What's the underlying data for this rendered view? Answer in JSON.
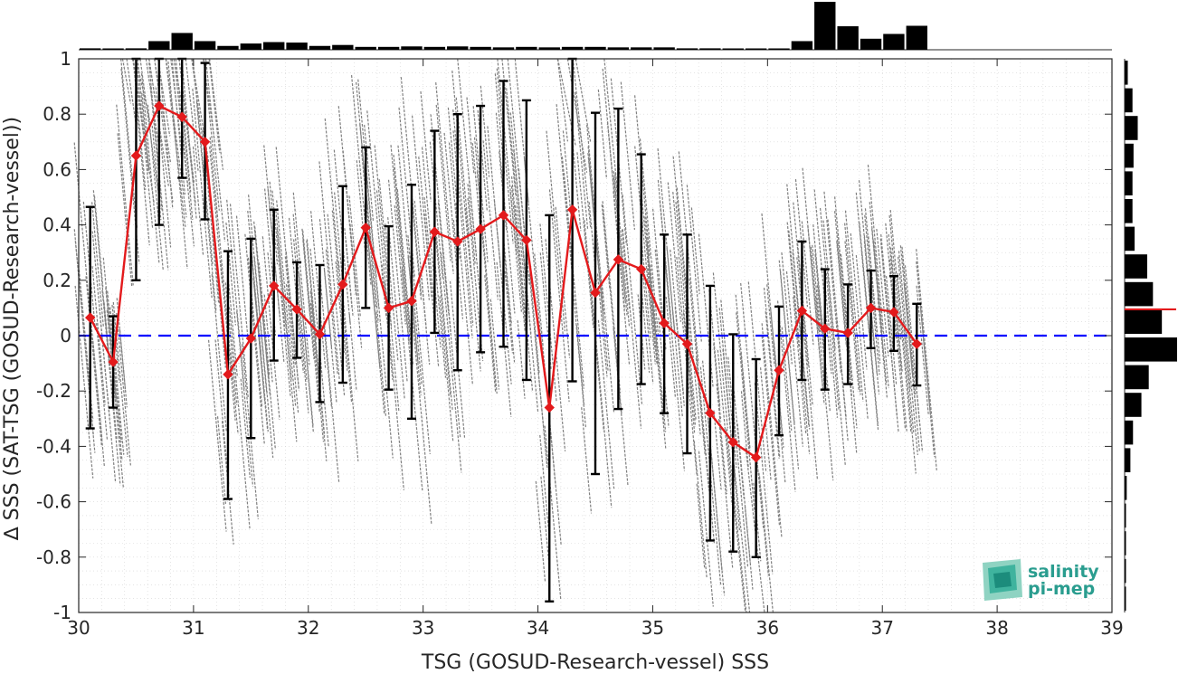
{
  "chart_data": {
    "type": "scatter",
    "xlabel": "TSG (GOSUD-Research-vessel) SSS",
    "ylabel": "∆ SSS (SAT-TSG (GOSUD-Research-vessel))",
    "xlim": [
      30,
      39
    ],
    "ylim": [
      -1,
      1
    ],
    "x_ticks": [
      "30",
      "31",
      "32",
      "33",
      "34",
      "35",
      "36",
      "37",
      "38",
      "39"
    ],
    "y_ticks": [
      "-1",
      "-0.8",
      "-0.6",
      "-0.4",
      "-0.2",
      "0",
      "0.2",
      "0.4",
      "0.6",
      "0.8",
      "1"
    ],
    "grid": "dotted-minor",
    "zero_line": {
      "y": 0,
      "color": "#0000ff",
      "style": "dashed"
    },
    "binned_mean": {
      "color": "#e31a1c",
      "x": [
        30.1,
        30.3,
        30.5,
        30.7,
        30.9,
        31.1,
        31.3,
        31.5,
        31.7,
        31.9,
        32.1,
        32.3,
        32.5,
        32.7,
        32.9,
        33.1,
        33.3,
        33.5,
        33.7,
        33.9,
        34.1,
        34.3,
        34.5,
        34.7,
        34.9,
        35.1,
        35.3,
        35.5,
        35.7,
        35.9,
        36.1,
        36.3,
        36.5,
        36.7,
        36.9,
        37.1,
        37.3
      ],
      "y": [
        0.065,
        -0.095,
        0.65,
        0.83,
        0.79,
        0.7,
        -0.14,
        -0.01,
        0.18,
        0.095,
        0.005,
        0.185,
        0.39,
        0.1,
        0.125,
        0.375,
        0.34,
        0.385,
        0.435,
        0.345,
        -0.26,
        0.455,
        0.155,
        0.275,
        0.24,
        0.045,
        -0.03,
        -0.28,
        -0.385,
        -0.44,
        -0.125,
        0.09,
        0.025,
        0.01,
        0.1,
        0.085,
        -0.03
      ],
      "lower": [
        -0.335,
        -0.26,
        0.2,
        0.4,
        0.57,
        0.42,
        -0.59,
        -0.37,
        -0.09,
        -0.08,
        -0.24,
        -0.17,
        0.1,
        -0.195,
        -0.3,
        0.01,
        -0.125,
        -0.06,
        -0.04,
        -0.16,
        -0.96,
        -0.165,
        -0.5,
        -0.265,
        -0.175,
        -0.28,
        -0.425,
        -0.74,
        -0.78,
        -0.8,
        -0.36,
        -0.16,
        -0.195,
        -0.175,
        -0.045,
        -0.055,
        -0.18
      ],
      "upper": [
        0.465,
        0.07,
        1.0,
        1.0,
        1.0,
        0.985,
        0.305,
        0.35,
        0.455,
        0.265,
        0.255,
        0.54,
        0.68,
        0.395,
        0.545,
        0.74,
        0.8,
        0.83,
        0.92,
        0.85,
        0.435,
        1.0,
        0.805,
        0.82,
        0.655,
        0.365,
        0.365,
        0.18,
        0.005,
        -0.085,
        0.105,
        0.34,
        0.24,
        0.185,
        0.235,
        0.215,
        0.115
      ]
    },
    "scatter_color": "#808080",
    "top_histogram": {
      "bin_centers": [
        30.1,
        30.3,
        30.5,
        30.7,
        30.9,
        31.1,
        31.3,
        31.5,
        31.7,
        31.9,
        32.1,
        32.3,
        32.5,
        32.7,
        32.9,
        33.1,
        33.3,
        33.5,
        33.7,
        33.9,
        34.1,
        34.3,
        34.5,
        34.7,
        34.9,
        35.1,
        35.3,
        35.5,
        35.7,
        35.9,
        36.1,
        36.3,
        36.5,
        36.7,
        36.9,
        37.1,
        37.3
      ],
      "relative_counts": [
        0.03,
        0.01,
        0.03,
        0.18,
        0.35,
        0.18,
        0.08,
        0.13,
        0.16,
        0.15,
        0.08,
        0.1,
        0.06,
        0.06,
        0.07,
        0.06,
        0.07,
        0.06,
        0.05,
        0.06,
        0.05,
        0.06,
        0.06,
        0.05,
        0.05,
        0.05,
        0.03,
        0.03,
        0.01,
        0.01,
        0.01,
        0.18,
        1.0,
        0.49,
        0.23,
        0.33,
        0.5
      ]
    },
    "right_histogram": {
      "bin_centers": [
        0.95,
        0.85,
        0.75,
        0.65,
        0.55,
        0.45,
        0.35,
        0.25,
        0.15,
        0.05,
        -0.05,
        -0.15,
        -0.25,
        -0.35,
        -0.45,
        -0.55,
        -0.65,
        -0.75,
        -0.85,
        -0.95
      ],
      "relative_counts": [
        0.06,
        0.15,
        0.25,
        0.17,
        0.15,
        0.15,
        0.19,
        0.43,
        0.54,
        0.71,
        1.0,
        0.46,
        0.32,
        0.16,
        0.11,
        0.04,
        0.02,
        0.02,
        0.01,
        0.01
      ],
      "median_marker": {
        "y": 0.095,
        "color": "#e31a1c"
      }
    }
  },
  "logo": {
    "line1": "salinity",
    "line2": "pi-mep"
  }
}
